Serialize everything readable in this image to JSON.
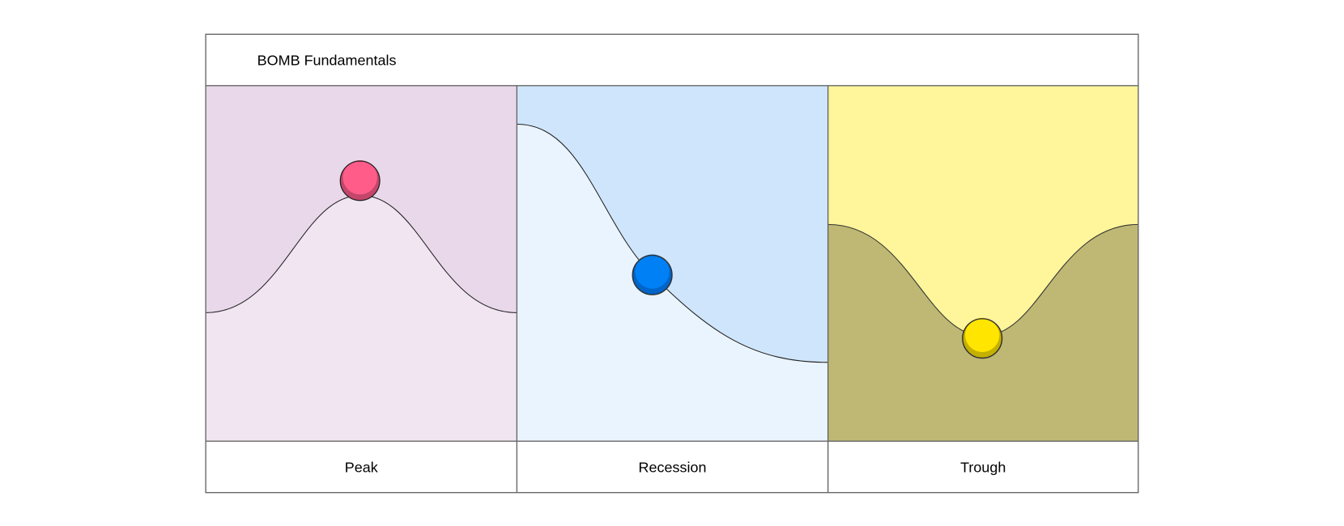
{
  "title": "BOMB Fundamentals",
  "panels": [
    {
      "label": "Peak",
      "ball_position": "top of hill",
      "colors": {
        "upper": "#E9D8EA",
        "lower": "#F1E5F2",
        "ball": "#FF5C8A",
        "ball_shade": "#C4466A"
      }
    },
    {
      "label": "Recession",
      "ball_position": "middle of downward slope",
      "colors": {
        "upper": "#CFE5FB",
        "lower": "#EAF4FE",
        "ball": "#0080F5",
        "ball_shade": "#0064C8"
      }
    },
    {
      "label": "Trough",
      "ball_position": "bottom of valley",
      "colors": {
        "upper": "#FFF59A",
        "lower": "#BFB874",
        "ball": "#FFE500",
        "ball_shade": "#C4B000"
      }
    }
  ],
  "colors": {
    "border": "#666666",
    "curve": "#222222"
  }
}
